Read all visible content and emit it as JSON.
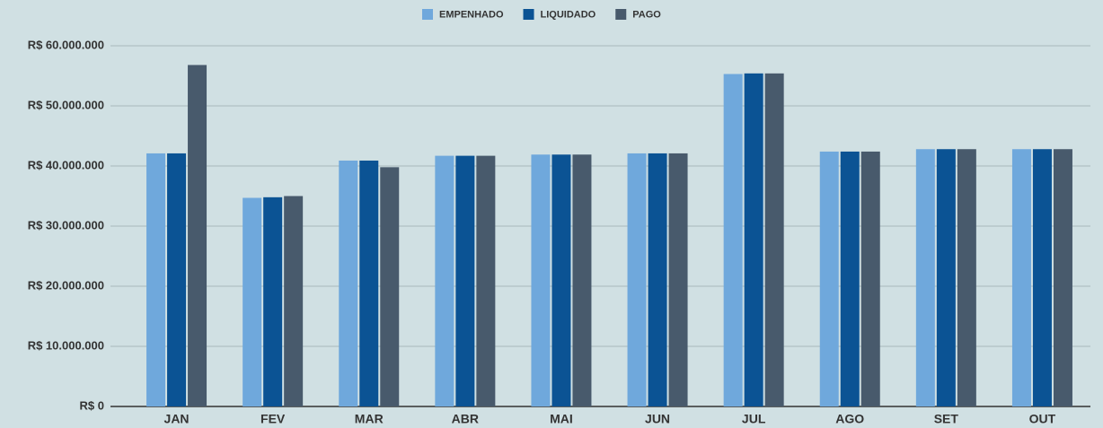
{
  "chart_data": {
    "type": "bar",
    "categories": [
      "JAN",
      "FEV",
      "MAR",
      "ABR",
      "MAI",
      "JUN",
      "JUL",
      "AGO",
      "SET",
      "OUT"
    ],
    "series": [
      {
        "name": "EMPENHADO",
        "color": "#6fa8dc",
        "values": [
          42100000,
          34700000,
          40900000,
          41700000,
          41900000,
          42100000,
          55300000,
          42400000,
          42800000,
          42800000
        ]
      },
      {
        "name": "LIQUIDADO",
        "color": "#0b5394",
        "values": [
          42100000,
          34800000,
          40900000,
          41700000,
          41900000,
          42100000,
          55400000,
          42400000,
          42800000,
          42800000
        ]
      },
      {
        "name": "PAGO",
        "color": "#485a6c",
        "values": [
          56800000,
          35000000,
          39800000,
          41700000,
          41900000,
          42100000,
          55400000,
          42400000,
          42800000,
          42800000
        ]
      }
    ],
    "ylim": [
      0,
      60000000
    ],
    "yticks": [
      {
        "value": 0,
        "label": "R$ 0"
      },
      {
        "value": 10000000,
        "label": "R$ 10.000.000"
      },
      {
        "value": 20000000,
        "label": "R$ 20.000.000"
      },
      {
        "value": 30000000,
        "label": "R$ 30.000.000"
      },
      {
        "value": 40000000,
        "label": "R$ 40.000.000"
      },
      {
        "value": 50000000,
        "label": "R$ 50.000.000"
      },
      {
        "value": 60000000,
        "label": "R$ 60.000.000"
      }
    ],
    "grid": true,
    "legend": "top"
  }
}
